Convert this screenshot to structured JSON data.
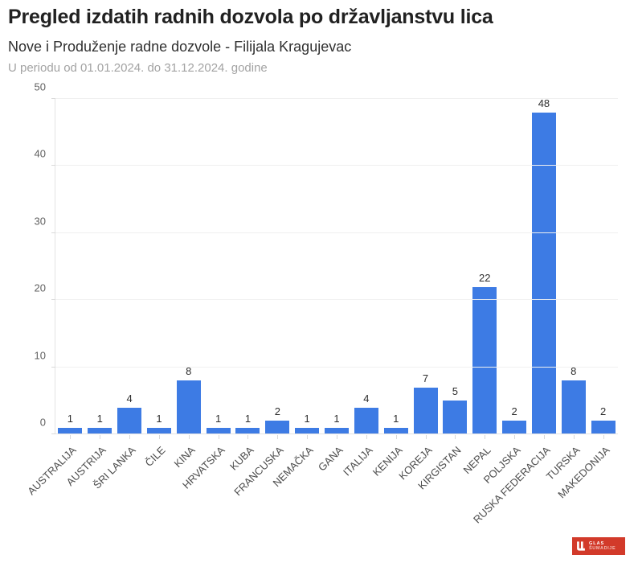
{
  "header": {
    "title": "Pregled izdatih radnih dozvola po državljanstvu lica",
    "subtitle": "Nove i Produženje radne dozvole - Filijala Kragujevac",
    "period": "U periodu od 01.01.2024. do 31.12.2024. godine"
  },
  "chart_data": {
    "type": "bar",
    "title": "Pregled izdatih radnih dozvola po državljanstvu lica",
    "subtitle": "Nove i Produženje radne dozvole - Filijala Kragujevac",
    "annotation": "U periodu od 01.01.2024. do 31.12.2024. godine",
    "categories": [
      "AUSTRALIJA",
      "AUSTRIJA",
      "ŠRI LANKA",
      "ČILE",
      "KINA",
      "HRVATSKA",
      "KUBA",
      "FRANCUSKA",
      "NEMAČKA",
      "GANA",
      "ITALIJA",
      "KENIJA",
      "KOREJA",
      "KIRGISTAN",
      "NEPAL",
      "POLJSKA",
      "RUSKA FEDERACIJA",
      "TURSKA",
      "MAKEDONIJA"
    ],
    "values": [
      1,
      1,
      4,
      1,
      8,
      1,
      1,
      2,
      1,
      1,
      4,
      1,
      7,
      5,
      22,
      2,
      48,
      8,
      2
    ],
    "xlabel": "",
    "ylabel": "",
    "ylim": [
      0,
      50
    ],
    "yticks": [
      0,
      10,
      20,
      30,
      40,
      50
    ],
    "grid": true,
    "legend": false,
    "bar_color": "#3d7be4",
    "value_labels": true
  },
  "branding": {
    "logo_line1": "GLAS",
    "logo_line2": "ŠUMADIJE",
    "logo_bg": "#d23a2a"
  }
}
